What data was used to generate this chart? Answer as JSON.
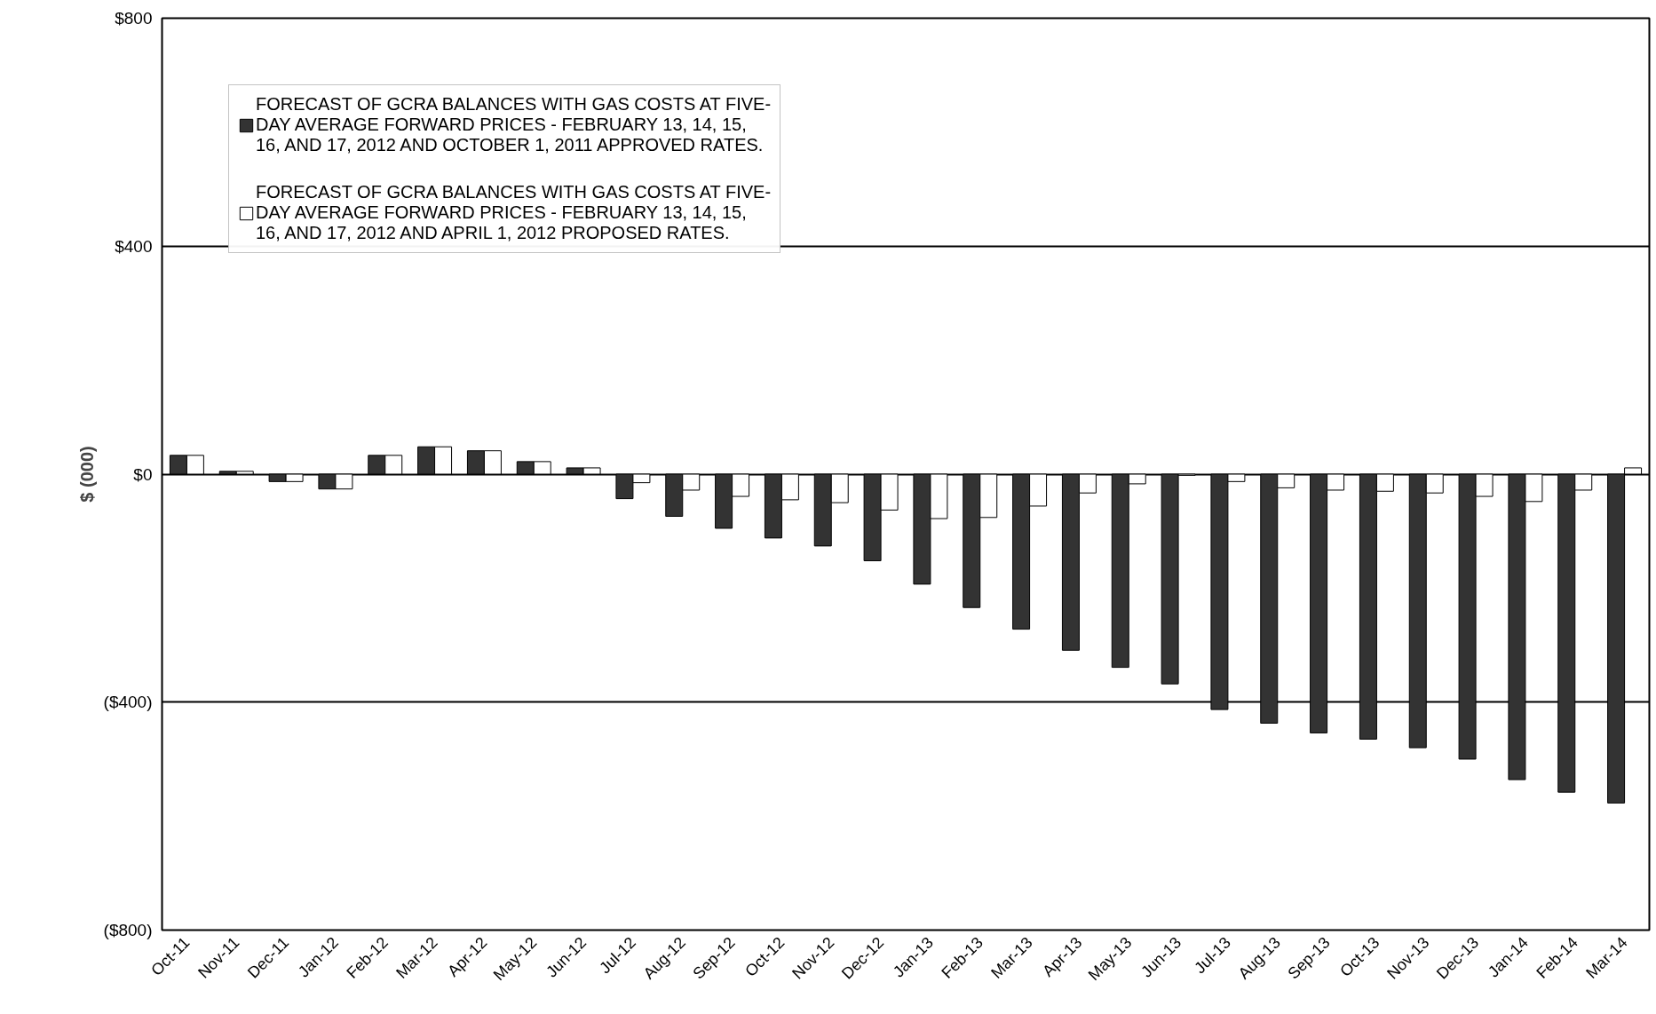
{
  "chart_data": {
    "type": "bar",
    "ylabel": "$ (000)",
    "categories": [
      "Oct-11",
      "Nov-11",
      "Dec-11",
      "Jan-12",
      "Feb-12",
      "Mar-12",
      "Apr-12",
      "May-12",
      "Jun-12",
      "Jul-12",
      "Aug-12",
      "Sep-12",
      "Oct-12",
      "Nov-12",
      "Dec-12",
      "Jan-13",
      "Feb-13",
      "Mar-13",
      "Apr-13",
      "May-13",
      "Jun-13",
      "Jul-13",
      "Aug-13",
      "Sep-13",
      "Oct-13",
      "Nov-13",
      "Dec-13",
      "Jan-14",
      "Feb-14",
      "Mar-14"
    ],
    "series": [
      {
        "name": "FORECAST OF GCRA BALANCES WITH GAS COSTS AT FIVE-DAY AVERAGE FORWARD PRICES - FEBRUARY 13, 14, 15, 16, AND 17, 2012 AND OCTOBER 1, 2011 APPROVED RATES.",
        "color": "#333333",
        "values": [
          33,
          5,
          -13,
          -26,
          33,
          48,
          41,
          22,
          11,
          -43,
          -74,
          -95,
          -112,
          -126,
          -152,
          -193,
          -234,
          -272,
          -309,
          -339,
          -368,
          -413,
          -437,
          -454,
          -465,
          -480,
          -500,
          -536,
          -558,
          -577
        ]
      },
      {
        "name": "FORECAST OF GCRA BALANCES WITH GAS COSTS AT FIVE-DAY AVERAGE FORWARD PRICES - FEBRUARY 13, 14, 15, 16, AND 17, 2012 AND APRIL 1, 2012 PROPOSED RATES.",
        "color": "#ffffff",
        "values": [
          33,
          5,
          -13,
          -26,
          33,
          48,
          41,
          22,
          11,
          -15,
          -28,
          -39,
          -45,
          -50,
          -63,
          -78,
          -76,
          -56,
          -33,
          -17,
          -2,
          -13,
          -24,
          -28,
          -30,
          -33,
          -39,
          -48,
          -28,
          11
        ]
      }
    ],
    "ylim": [
      -800,
      800
    ],
    "yticks": [
      {
        "value": -800,
        "label": "($800)"
      },
      {
        "value": -400,
        "label": "($400)"
      },
      {
        "value": 0,
        "label": "$0"
      },
      {
        "value": 400,
        "label": "$400"
      },
      {
        "value": 800,
        "label": "$800"
      }
    ],
    "grid": "y",
    "legend": "top left"
  }
}
